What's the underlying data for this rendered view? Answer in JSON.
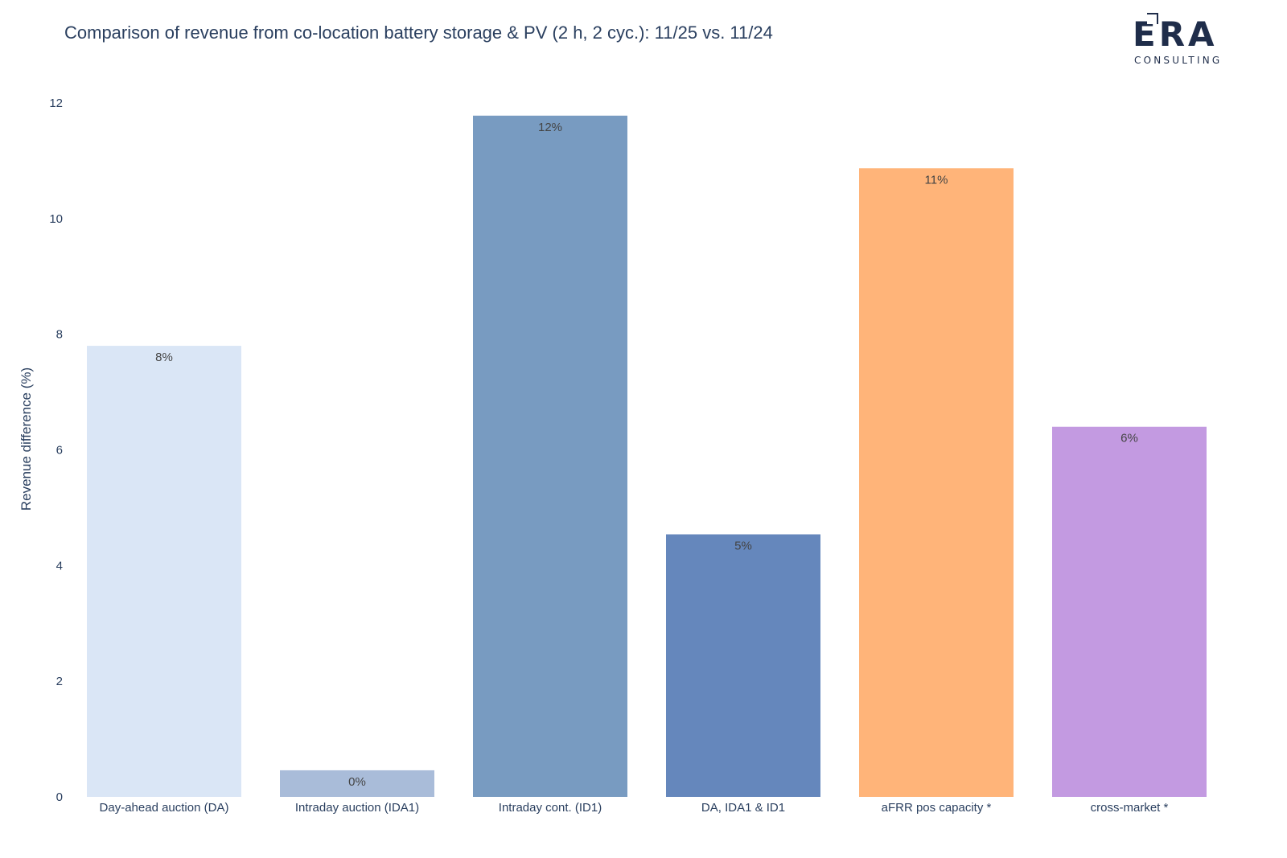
{
  "chart_data": {
    "type": "bar",
    "title": "Comparison of revenue from co-location battery storage & PV (2 h, 2 cyc.): 11/25 vs. 11/24",
    "xlabel": "",
    "ylabel": "Revenue difference (%)",
    "ylim": [
      0,
      12
    ],
    "yticks": [
      0,
      2,
      4,
      6,
      8,
      10,
      12
    ],
    "grid": false,
    "categories": [
      "Day-ahead auction (DA)",
      "Intraday auction (IDA1)",
      "Intraday cont. (ID1)",
      "DA, IDA1 & ID1",
      "aFRR pos capacity *",
      "cross-market *"
    ],
    "values": [
      7.8,
      0.46,
      11.78,
      4.54,
      10.87,
      6.4
    ],
    "data_labels": [
      "8%",
      "0%",
      "12%",
      "5%",
      "11%",
      "6%"
    ],
    "colors": [
      "#dae6f6",
      "#a9bcd9",
      "#789bc1",
      "#6587bc",
      "#ffb479",
      "#c39ae1"
    ]
  },
  "logo": {
    "wordmark": "ERA",
    "subtitle": "CONSULTING"
  }
}
